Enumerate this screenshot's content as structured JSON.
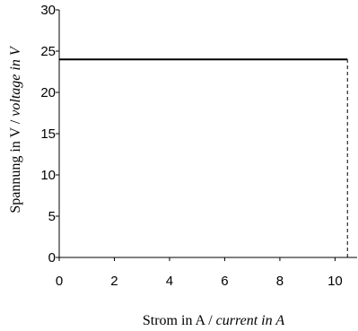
{
  "chart_data": {
    "type": "line",
    "title": "",
    "xlabel": {
      "main": "Strom in A / ",
      "italic": "current in A"
    },
    "ylabel": {
      "main": "Spannung in V / ",
      "italic": "voltage in V"
    },
    "xlim": [
      0,
      10.8
    ],
    "ylim": [
      0,
      30
    ],
    "xticks": [
      "0",
      "2",
      "4",
      "6",
      "8",
      "10"
    ],
    "xtick_values": [
      0,
      2,
      4,
      6,
      8,
      10
    ],
    "yticks": [
      "0",
      "5",
      "10",
      "15",
      "20",
      "25",
      "30"
    ],
    "ytick_values": [
      0,
      5,
      10,
      15,
      20,
      25,
      30
    ],
    "series": [
      {
        "x": [
          0,
          10.45
        ],
        "y": [
          24,
          24
        ],
        "style": "solid"
      }
    ],
    "reference_lines": [
      {
        "x": [
          10.45,
          10.45
        ],
        "y": [
          0,
          24
        ],
        "style": "dashed"
      }
    ],
    "grid": false,
    "legend": "none"
  }
}
